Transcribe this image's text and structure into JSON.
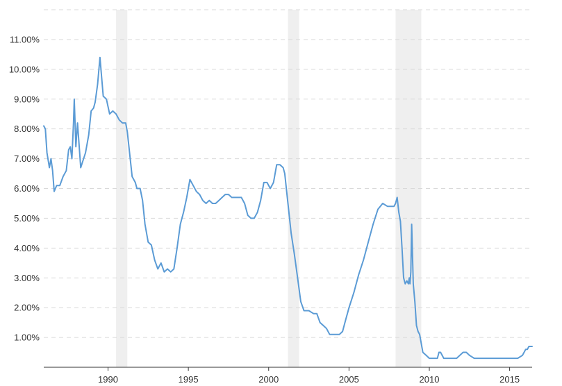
{
  "chart_data": {
    "type": "line",
    "title": "",
    "xlabel": "",
    "ylabel": "",
    "xlim": [
      1986.0,
      2016.4
    ],
    "ylim": [
      0.0,
      0.12
    ],
    "y_ticks": [
      {
        "value": 0.01,
        "label": "1.00%"
      },
      {
        "value": 0.02,
        "label": "2.00%"
      },
      {
        "value": 0.03,
        "label": "3.00%"
      },
      {
        "value": 0.04,
        "label": "4.00%"
      },
      {
        "value": 0.05,
        "label": "5.00%"
      },
      {
        "value": 0.06,
        "label": "6.00%"
      },
      {
        "value": 0.07,
        "label": "7.00%"
      },
      {
        "value": 0.08,
        "label": "8.00%"
      },
      {
        "value": 0.09,
        "label": "9.00%"
      },
      {
        "value": 0.1,
        "label": "10.00%"
      },
      {
        "value": 0.11,
        "label": "11.00%"
      }
    ],
    "x_ticks": [
      {
        "value": 1990,
        "label": "1990"
      },
      {
        "value": 1995,
        "label": "1995"
      },
      {
        "value": 2000,
        "label": "2000"
      },
      {
        "value": 2005,
        "label": "2005"
      },
      {
        "value": 2010,
        "label": "2010"
      },
      {
        "value": 2015,
        "label": "2015"
      }
    ],
    "grid": true,
    "recessions": [
      {
        "start": 1990.5,
        "end": 1991.2
      },
      {
        "start": 2001.2,
        "end": 2001.9
      },
      {
        "start": 2007.9,
        "end": 2009.5
      }
    ],
    "series": [
      {
        "color": "#5b9bd5",
        "x": [
          1986.0,
          1986.1,
          1986.2,
          1986.35,
          1986.45,
          1986.55,
          1986.65,
          1986.8,
          1987.0,
          1987.2,
          1987.4,
          1987.55,
          1987.65,
          1987.75,
          1987.85,
          1987.9,
          1988.0,
          1988.1,
          1988.3,
          1988.6,
          1988.8,
          1988.95,
          1989.1,
          1989.2,
          1989.35,
          1989.5,
          1989.7,
          1989.9,
          1990.1,
          1990.3,
          1990.5,
          1990.7,
          1990.9,
          1991.1,
          1991.2,
          1991.4,
          1991.5,
          1991.7,
          1991.8,
          1992.0,
          1992.15,
          1992.3,
          1992.5,
          1992.7,
          1992.9,
          1993.1,
          1993.3,
          1993.5,
          1993.7,
          1993.9,
          1994.1,
          1994.3,
          1994.5,
          1994.7,
          1994.9,
          1995.1,
          1995.3,
          1995.5,
          1995.7,
          1995.9,
          1996.1,
          1996.3,
          1996.5,
          1996.7,
          1996.9,
          1997.1,
          1997.3,
          1997.5,
          1997.7,
          1997.9,
          1998.1,
          1998.3,
          1998.5,
          1998.7,
          1998.9,
          1999.1,
          1999.3,
          1999.5,
          1999.7,
          1999.9,
          2000.1,
          2000.3,
          2000.5,
          2000.7,
          2000.9,
          2001.0,
          2001.2,
          2001.4,
          2001.6,
          2001.8,
          2002.0,
          2002.2,
          2002.5,
          2002.8,
          2003.0,
          2003.2,
          2003.4,
          2003.6,
          2003.8,
          2004.0,
          2004.2,
          2004.4,
          2004.6,
          2004.8,
          2005.0,
          2005.3,
          2005.6,
          2005.9,
          2006.2,
          2006.5,
          2006.8,
          2007.1,
          2007.4,
          2007.6,
          2007.8,
          2007.9,
          2008.0,
          2008.1,
          2008.2,
          2008.3,
          2008.4,
          2008.5,
          2008.6,
          2008.7,
          2008.75,
          2008.8,
          2008.85,
          2008.9,
          2009.0,
          2009.1,
          2009.2,
          2009.3,
          2009.4,
          2009.6,
          2009.8,
          2010.0,
          2010.2,
          2010.4,
          2010.5,
          2010.6,
          2010.7,
          2010.9,
          2011.1,
          2011.3,
          2011.5,
          2011.7,
          2011.9,
          2012.1,
          2012.3,
          2012.5,
          2012.8,
          2013.1,
          2013.4,
          2013.7,
          2014.0,
          2014.3,
          2014.6,
          2014.9,
          2015.2,
          2015.5,
          2015.8,
          2016.0,
          2016.1,
          2016.2,
          2016.4
        ],
        "y": [
          0.081,
          0.08,
          0.072,
          0.067,
          0.07,
          0.066,
          0.059,
          0.061,
          0.061,
          0.064,
          0.066,
          0.073,
          0.074,
          0.07,
          0.082,
          0.09,
          0.074,
          0.082,
          0.067,
          0.072,
          0.078,
          0.086,
          0.087,
          0.089,
          0.095,
          0.104,
          0.091,
          0.09,
          0.085,
          0.086,
          0.085,
          0.083,
          0.082,
          0.082,
          0.079,
          0.069,
          0.064,
          0.062,
          0.06,
          0.06,
          0.056,
          0.048,
          0.042,
          0.041,
          0.036,
          0.033,
          0.035,
          0.032,
          0.033,
          0.032,
          0.033,
          0.04,
          0.048,
          0.052,
          0.057,
          0.063,
          0.061,
          0.059,
          0.058,
          0.056,
          0.055,
          0.056,
          0.055,
          0.055,
          0.056,
          0.057,
          0.058,
          0.058,
          0.057,
          0.057,
          0.057,
          0.057,
          0.055,
          0.051,
          0.05,
          0.05,
          0.052,
          0.056,
          0.062,
          0.062,
          0.06,
          0.062,
          0.068,
          0.068,
          0.067,
          0.065,
          0.055,
          0.045,
          0.038,
          0.03,
          0.022,
          0.019,
          0.019,
          0.018,
          0.018,
          0.015,
          0.014,
          0.013,
          0.011,
          0.011,
          0.011,
          0.011,
          0.012,
          0.016,
          0.02,
          0.025,
          0.031,
          0.036,
          0.042,
          0.048,
          0.053,
          0.055,
          0.054,
          0.054,
          0.054,
          0.055,
          0.057,
          0.052,
          0.049,
          0.04,
          0.03,
          0.028,
          0.029,
          0.028,
          0.03,
          0.028,
          0.032,
          0.048,
          0.028,
          0.022,
          0.014,
          0.012,
          0.011,
          0.005,
          0.004,
          0.003,
          0.003,
          0.003,
          0.003,
          0.005,
          0.005,
          0.003,
          0.003,
          0.003,
          0.003,
          0.003,
          0.004,
          0.005,
          0.005,
          0.004,
          0.003,
          0.003,
          0.003,
          0.003,
          0.003,
          0.003,
          0.003,
          0.003,
          0.003,
          0.003,
          0.004,
          0.006,
          0.006,
          0.007,
          0.007
        ]
      }
    ]
  }
}
